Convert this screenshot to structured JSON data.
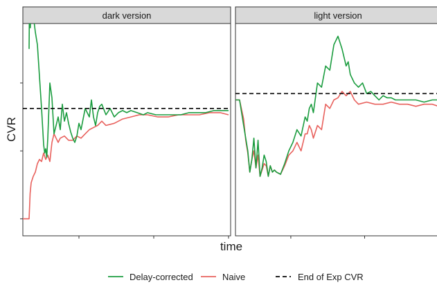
{
  "chart_data": {
    "type": "line",
    "xlabel": "time",
    "ylabel": "CVR",
    "xlim": [
      0,
      100
    ],
    "ylim": [
      0,
      100
    ],
    "legend_position": "bottom",
    "colors": {
      "delay_corrected": "#1a9c3e",
      "naive": "#e8605c",
      "reference": "#000000"
    },
    "legend": [
      {
        "label": "Delay-corrected",
        "style": "solid",
        "color_key": "delay_corrected"
      },
      {
        "label": "Naive",
        "style": "solid",
        "color_key": "naive"
      },
      {
        "label": "End of Exp CVR",
        "style": "dashed",
        "color_key": "reference"
      }
    ],
    "x_ticks": [
      27,
      63,
      99
    ],
    "y_ticks": [
      8,
      40,
      72
    ],
    "panels": [
      {
        "strip": "dark version",
        "reference": 60,
        "series": [
          {
            "key": "delay_corrected",
            "x": [
              3,
              3.2,
              3.6,
              4,
              4.5,
              5,
              5.5,
              6,
              7,
              8,
              9,
              10,
              10.5,
              11,
              11.5,
              12,
              13,
              14,
              15,
              16,
              17,
              18,
              19,
              20,
              21,
              22,
              23,
              24,
              25,
              26,
              27,
              28,
              30,
              32,
              33,
              34,
              35,
              36,
              37,
              38,
              40,
              42,
              44,
              46,
              48,
              50,
              52,
              55,
              58,
              60,
              64,
              68,
              72,
              76,
              80,
              84,
              88,
              92,
              96,
              99
            ],
            "y": [
              88,
              110,
              98,
              115,
              112,
              108,
              100,
              96,
              90,
              75,
              60,
              43,
              39,
              41,
              37,
              46,
              72,
              65,
              48,
              52,
              56,
              50,
              62,
              54,
              58,
              53,
              49,
              46,
              44,
              47,
              53,
              50,
              60,
              56,
              64,
              56,
              52,
              58,
              61,
              62,
              57,
              60,
              56,
              58,
              59,
              58,
              59,
              58,
              57,
              58,
              57,
              57,
              57,
              57,
              58,
              58,
              58,
              59,
              59,
              59
            ]
          },
          {
            "key": "naive",
            "x": [
              0,
              1,
              2,
              3,
              3.5,
              4,
              5,
              6,
              7,
              8,
              9,
              10,
              11,
              12,
              13,
              14,
              15,
              16,
              17,
              18,
              20,
              22,
              24,
              26,
              28,
              30,
              32,
              34,
              36,
              38,
              40,
              44,
              48,
              52,
              56,
              60,
              65,
              70,
              75,
              80,
              85,
              90,
              95,
              99
            ],
            "y": [
              8,
              8,
              8,
              8,
              20,
              25,
              28,
              30,
              34,
              36,
              35,
              39,
              36,
              38,
              35,
              44,
              48,
              46,
              44,
              46,
              47,
              45,
              45,
              47,
              46,
              48,
              50,
              51,
              52,
              54,
              52,
              53,
              55,
              56,
              57,
              57,
              56,
              56,
              57,
              57,
              57,
              58,
              58,
              57
            ]
          }
        ]
      },
      {
        "strip": "light version",
        "reference": 67,
        "series": [
          {
            "key": "delay_corrected",
            "x": [
              0,
              2,
              4,
              5,
              6,
              7,
              8,
              9,
              10,
              11,
              12,
              13,
              14,
              15,
              16,
              17,
              18,
              19,
              20,
              22,
              24,
              26,
              28,
              30,
              32,
              34,
              35,
              36,
              37,
              38,
              40,
              42,
              44,
              46,
              48,
              50,
              52,
              54,
              55,
              56,
              58,
              60,
              62,
              64,
              66,
              68,
              70,
              72,
              74,
              76,
              78,
              80,
              84,
              88,
              92,
              96,
              99
            ],
            "y": [
              64,
              64,
              52,
              46,
              40,
              30,
              36,
              46,
              32,
              45,
              28,
              32,
              38,
              35,
              28,
              33,
              30,
              31,
              30,
              29,
              34,
              40,
              44,
              50,
              47,
              56,
              54,
              60,
              62,
              58,
              72,
              70,
              80,
              78,
              90,
              94,
              88,
              80,
              82,
              76,
              72,
              70,
              72,
              67,
              68,
              66,
              64,
              66,
              65,
              65,
              64,
              64,
              64,
              64,
              63,
              64,
              64
            ]
          },
          {
            "key": "naive",
            "x": [
              0,
              2,
              4,
              5,
              6,
              7,
              8,
              9,
              10,
              11,
              12,
              13,
              14,
              15,
              16,
              17,
              18,
              19,
              20,
              22,
              24,
              26,
              28,
              30,
              32,
              34,
              35,
              36,
              37,
              38,
              40,
              42,
              44,
              46,
              48,
              50,
              52,
              54,
              56,
              58,
              60,
              64,
              68,
              72,
              76,
              80,
              84,
              88,
              92,
              96,
              99
            ],
            "y": [
              64,
              64,
              55,
              45,
              39,
              30,
              36,
              40,
              32,
              38,
              28,
              31,
              34,
              33,
              28,
              33,
              30,
              31,
              30,
              29,
              33,
              38,
              40,
              44,
              40,
              48,
              48,
              52,
              50,
              46,
              52,
              50,
              62,
              60,
              64,
              65,
              68,
              66,
              68,
              64,
              62,
              63,
              62,
              62,
              63,
              62,
              62,
              61,
              62,
              62,
              61
            ]
          }
        ]
      }
    ]
  }
}
